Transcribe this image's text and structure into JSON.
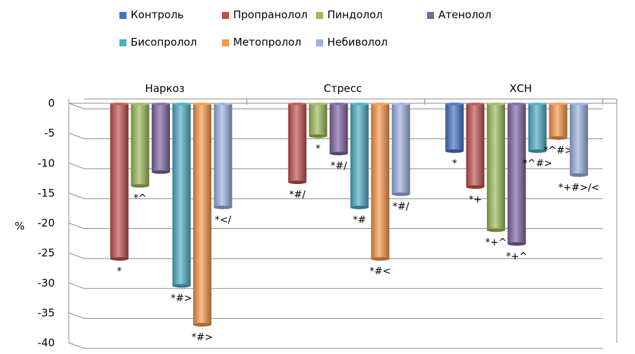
{
  "chart_data": {
    "type": "bar",
    "orientation": "downward",
    "title": "",
    "ylabel": "%",
    "xlabel": "",
    "ylim": [
      -40,
      0
    ],
    "yticks": [
      0,
      -5,
      -10,
      -15,
      -20,
      -25,
      -30,
      -35,
      -40
    ],
    "grid": true,
    "legend_position": "top",
    "categories": [
      "Наркоз",
      "Стресс",
      "ХСН"
    ],
    "series": [
      {
        "name": "Контроль",
        "color": "#4472C4",
        "values": [
          null,
          null,
          -8
        ],
        "annotations": [
          null,
          null,
          "*"
        ]
      },
      {
        "name": "Пропранолол",
        "color": "#C0504D",
        "values": [
          -26,
          -13.2,
          -14
        ],
        "annotations": [
          "*",
          "*#/",
          "*+"
        ]
      },
      {
        "name": "Пиндолол",
        "color": "#9BBB59",
        "values": [
          -13.8,
          -5.5,
          -21.2
        ],
        "annotations": [
          "*^",
          "*",
          "*+^"
        ]
      },
      {
        "name": "Атенолол",
        "color": "#8064A2",
        "values": [
          -11.5,
          -8.4,
          -23.5
        ],
        "annotations": [
          null,
          "*#/",
          "*+^"
        ]
      },
      {
        "name": "Бисопролол",
        "color": "#4BACC6",
        "values": [
          -30.5,
          -17.4,
          -8
        ],
        "annotations": [
          "*#>",
          "*#",
          "*^#>"
        ]
      },
      {
        "name": "Метопролол",
        "color": "#F79646",
        "values": [
          -37,
          -26,
          -5.8
        ],
        "annotations": [
          "*#>",
          "*#<",
          "*^#>"
        ]
      },
      {
        "name": "Небиволол",
        "color": "#9BB1E0",
        "values": [
          -17.4,
          -15.2,
          -12
        ],
        "annotations": [
          "*</",
          "*#/",
          "*+#>/<"
        ]
      }
    ]
  }
}
